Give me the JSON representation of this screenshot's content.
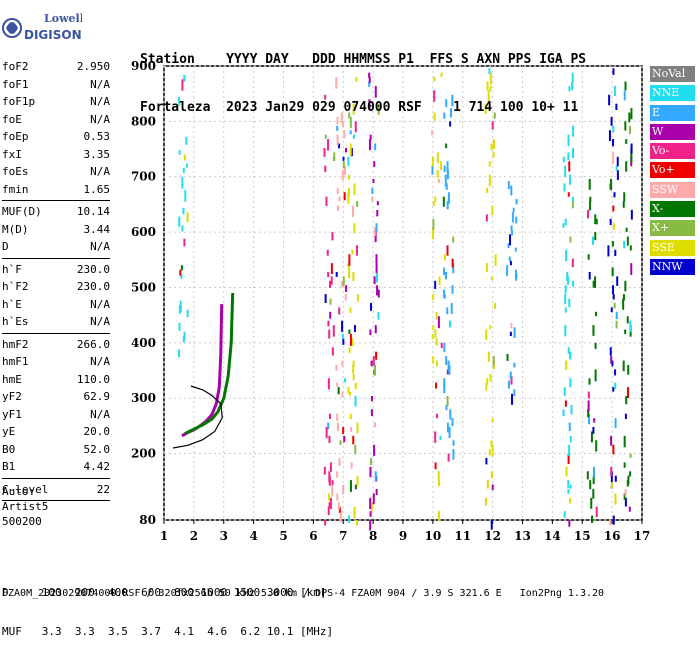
{
  "logo": {
    "line1": "Lowell",
    "line2": "DIGISONDE"
  },
  "header": {
    "labels": "Station    YYYY DAY   DDD HHMMSS P1  FFS S AXN PPS IGA PS",
    "values": "Fortaleza  2023 Jan29 029 074000 RSF    1 714 100 10+ 11"
  },
  "params": {
    "group1": [
      {
        "name": "foF2",
        "value": "2.950"
      },
      {
        "name": "foF1",
        "value": "N/A"
      },
      {
        "name": "foF1p",
        "value": "N/A"
      },
      {
        "name": "foE",
        "value": "N/A"
      },
      {
        "name": "foEp",
        "value": "0.53"
      },
      {
        "name": "fxI",
        "value": "3.35"
      },
      {
        "name": "foEs",
        "value": "N/A"
      },
      {
        "name": "fmin",
        "value": "1.65"
      }
    ],
    "group2": [
      {
        "name": "MUF(D)",
        "value": "10.14"
      },
      {
        "name": "M(D)",
        "value": "3.44"
      },
      {
        "name": "D",
        "value": "N/A"
      }
    ],
    "group3": [
      {
        "name": "h`F",
        "value": "230.0"
      },
      {
        "name": "h`F2",
        "value": "230.0"
      },
      {
        "name": "h`E",
        "value": "N/A"
      },
      {
        "name": "h`Es",
        "value": "N/A"
      }
    ],
    "group4": [
      {
        "name": "hmF2",
        "value": "266.0"
      },
      {
        "name": "hmF1",
        "value": "N/A"
      },
      {
        "name": "hmE",
        "value": "110.0"
      },
      {
        "name": "yF2",
        "value": "62.9"
      },
      {
        "name": "yF1",
        "value": "N/A"
      },
      {
        "name": "yE",
        "value": "20.0"
      },
      {
        "name": "B0",
        "value": "52.0"
      },
      {
        "name": "B1",
        "value": "4.42"
      }
    ],
    "group5": [
      {
        "name": "C-level",
        "value": "22"
      }
    ]
  },
  "auto": {
    "line1": "Auto:",
    "line2": "Artist5",
    "line3": "500200"
  },
  "legend": [
    {
      "label": "NoVal",
      "color": "#808080"
    },
    {
      "label": "NNE",
      "color": "#22ddee"
    },
    {
      "label": "E",
      "color": "#33aaff"
    },
    {
      "label": "W",
      "color": "#aa00aa"
    },
    {
      "label": "Vo-",
      "color": "#ee2288"
    },
    {
      "label": "Vo+",
      "color": "#ee0000"
    },
    {
      "label": "SSW",
      "color": "#ffaaaa"
    },
    {
      "label": "X-",
      "color": "#007700"
    },
    {
      "label": "X+",
      "color": "#88bb44"
    },
    {
      "label": "SSE",
      "color": "#dddd00"
    },
    {
      "label": "NNW",
      "color": "#0000cc"
    }
  ],
  "footer": {
    "line1": "D     100  200  400  600  800 1000 1500 3000 [km]",
    "line2": "MUF   3.3  3.3  3.5  3.7  4.1  4.6  6.2 10.1 [MHz]",
    "line3": "FZA0M_2023029074000.RSF / 320fx256h 50 kHz 5.0 km / DPS-4 FZA0M 904 / 3.9 S 321.6 E   Ion2Png 1.3.20"
  },
  "chart_data": {
    "type": "scatter",
    "title": "",
    "xlabel": "",
    "ylabel": "",
    "xlim": [
      1,
      17
    ],
    "ylim": [
      80,
      900
    ],
    "xticks": [
      1,
      2,
      3,
      4,
      5,
      6,
      7,
      8,
      9,
      10,
      11,
      12,
      13,
      14,
      15,
      16,
      17
    ],
    "yticks": [
      200,
      300,
      400,
      500,
      600,
      700,
      800,
      900
    ],
    "yticks_extra": [
      80
    ],
    "grid": true,
    "legend_position": "right",
    "traces": [
      {
        "name": "O-trace",
        "color": "#aa00aa",
        "points": [
          [
            1.6,
            232
          ],
          [
            1.8,
            238
          ],
          [
            2.0,
            243
          ],
          [
            2.2,
            250
          ],
          [
            2.4,
            258
          ],
          [
            2.6,
            270
          ],
          [
            2.75,
            290
          ],
          [
            2.85,
            320
          ],
          [
            2.9,
            380
          ],
          [
            2.93,
            470
          ]
        ]
      },
      {
        "name": "X-trace",
        "color": "#007700",
        "points": [
          [
            1.7,
            236
          ],
          [
            2.0,
            244
          ],
          [
            2.3,
            252
          ],
          [
            2.6,
            262
          ],
          [
            2.8,
            275
          ],
          [
            3.0,
            300
          ],
          [
            3.15,
            340
          ],
          [
            3.25,
            400
          ],
          [
            3.3,
            490
          ]
        ]
      },
      {
        "name": "profile",
        "color": "#000000",
        "points": [
          [
            1.3,
            210
          ],
          [
            1.8,
            215
          ],
          [
            2.3,
            225
          ],
          [
            2.7,
            240
          ],
          [
            2.95,
            265
          ],
          [
            2.9,
            290
          ],
          [
            2.6,
            305
          ],
          [
            2.3,
            315
          ],
          [
            1.9,
            322
          ]
        ]
      }
    ],
    "columns": [
      {
        "f": 1.6,
        "h0": 380,
        "h1": 900,
        "color": "#22ddee"
      },
      {
        "f": 6.5,
        "h0": 80,
        "h1": 900,
        "color": "#ee2288"
      },
      {
        "f": 6.9,
        "h0": 80,
        "h1": 900,
        "color": "#ffaaaa"
      },
      {
        "f": 7.3,
        "h0": 80,
        "h1": 900,
        "color": "#dddd00"
      },
      {
        "f": 8.0,
        "h0": 80,
        "h1": 900,
        "color": "#aa00aa"
      },
      {
        "f": 10.1,
        "h0": 80,
        "h1": 900,
        "color": "#dddd00"
      },
      {
        "f": 10.5,
        "h0": 200,
        "h1": 850,
        "color": "#33aaff"
      },
      {
        "f": 11.9,
        "h0": 80,
        "h1": 900,
        "color": "#dddd00"
      },
      {
        "f": 12.6,
        "h0": 300,
        "h1": 700,
        "color": "#33aaff"
      },
      {
        "f": 14.5,
        "h0": 80,
        "h1": 900,
        "color": "#22ddee"
      },
      {
        "f": 15.3,
        "h0": 80,
        "h1": 700,
        "color": "#007700"
      },
      {
        "f": 16.0,
        "h0": 80,
        "h1": 900,
        "color": "#0000cc"
      },
      {
        "f": 16.5,
        "h0": 80,
        "h1": 900,
        "color": "#007700"
      }
    ]
  }
}
